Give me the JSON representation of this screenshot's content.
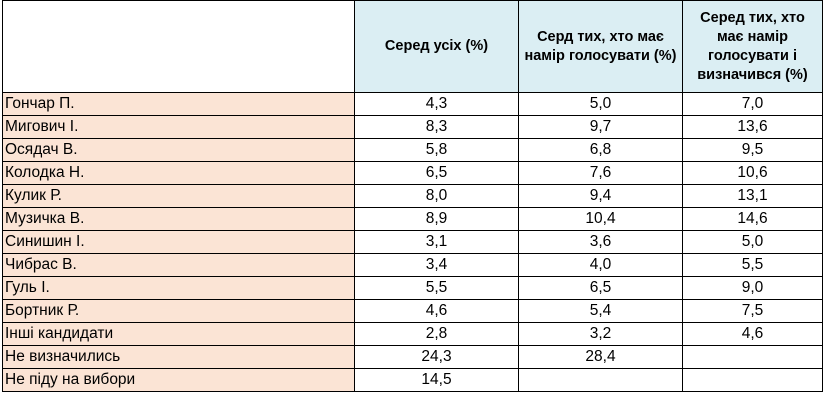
{
  "chart_data": {
    "type": "table",
    "columns": [
      "",
      "Серед усіх (%)",
      "Серд тих, хто має намір голосувати (%)",
      "Серед тих, хто має намір голосувати і визначився (%)"
    ],
    "rows": [
      [
        "Гончар П.",
        "4,3",
        "5,0",
        "7,0"
      ],
      [
        "Мигович І.",
        "8,3",
        "9,7",
        "13,6"
      ],
      [
        "Осядач В.",
        "5,8",
        "6,8",
        "9,5"
      ],
      [
        "Колодка Н.",
        "6,5",
        "7,6",
        "10,6"
      ],
      [
        "Кулик Р.",
        "8,0",
        "9,4",
        "13,1"
      ],
      [
        "Музичка В.",
        "8,9",
        "10,4",
        "14,6"
      ],
      [
        "Синишин І.",
        "3,1",
        "3,6",
        "5,0"
      ],
      [
        "Чибрас В.",
        "3,4",
        "4,0",
        "5,5"
      ],
      [
        "Гуль І.",
        "5,5",
        "6,5",
        "9,0"
      ],
      [
        "Бортник Р.",
        "4,6",
        "5,4",
        "7,5"
      ],
      [
        "Інші кандидати",
        "2,8",
        "3,2",
        "4,6"
      ],
      [
        "Не визначились",
        "24,3",
        "28,4",
        ""
      ],
      [
        "Не піду на вибори",
        "14,5",
        "",
        ""
      ]
    ]
  },
  "colors": {
    "header_bg": "#dbeef3",
    "name_bg": "#fbe4d5",
    "border": "#000000"
  }
}
